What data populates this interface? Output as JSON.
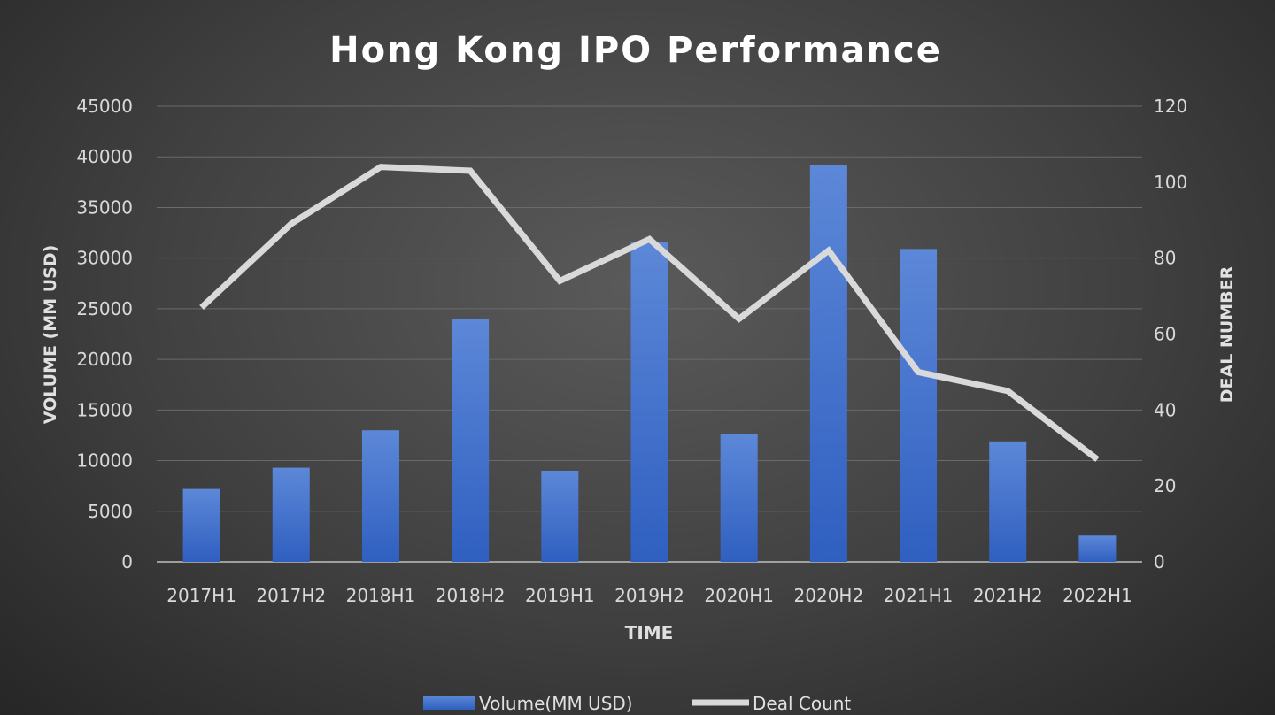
{
  "chart_data": {
    "type": "bar+line",
    "title": "Hong Kong IPO Performance",
    "xlabel": "TIME",
    "ylabel": "VOLUME (MM USD)",
    "y2label": "DEAL NUMBER",
    "categories": [
      "2017H1",
      "2017H2",
      "2018H1",
      "2018H2",
      "2019H1",
      "2019H2",
      "2020H1",
      "2020H2",
      "2021H1",
      "2021H2",
      "2022H1"
    ],
    "ylim": [
      0,
      45000
    ],
    "yticks": [
      0,
      5000,
      10000,
      15000,
      20000,
      25000,
      30000,
      35000,
      40000,
      45000
    ],
    "y2lim": [
      0,
      120
    ],
    "y2ticks": [
      0,
      20,
      40,
      60,
      80,
      100,
      120
    ],
    "grid": true,
    "legend": "bottom",
    "series": [
      {
        "name": "Volume(MM USD)",
        "type": "bar",
        "axis": "left",
        "color": "#4a78d0",
        "values": [
          7200,
          9300,
          13000,
          24000,
          9000,
          31600,
          12600,
          39200,
          30900,
          11900,
          2600
        ]
      },
      {
        "name": "Deal Count",
        "type": "line",
        "axis": "right",
        "color": "#d9d9d9",
        "values": [
          67,
          89,
          104,
          103,
          74,
          85,
          64,
          82,
          50,
          45,
          27
        ]
      }
    ]
  }
}
